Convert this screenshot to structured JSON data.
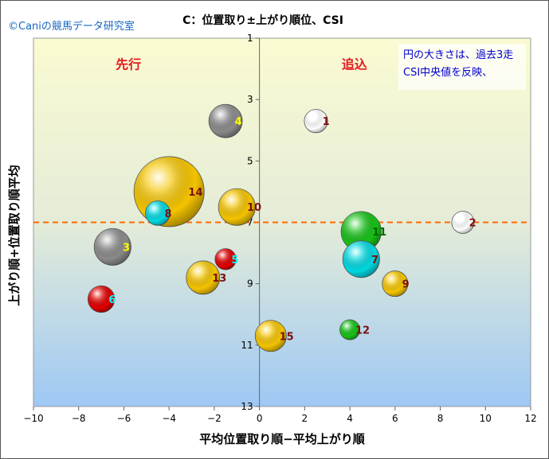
{
  "watermark": "©Caniの競馬データ研究室",
  "colors": {
    "watermark": "#1565c0",
    "quadrant_label": "#e41c1c",
    "note_text": "#0000cc",
    "reference_line": "#ff6a00",
    "label_dark": "#7a1010",
    "label_yellow": "#ffff00",
    "label_cyan": "#00ffff",
    "label_green": "#006400"
  },
  "chart_data": {
    "type": "scatter",
    "title": "C：位置取り±上がり順位、CSI",
    "xlabel": "平均位置取り順−平均上がり順",
    "ylabel": "上がり順+位置取り順平均",
    "xlim": [
      -10,
      12
    ],
    "ylim": [
      13,
      1
    ],
    "y_axis_inverted": true,
    "x_ticks": [
      -10,
      -8,
      -6,
      -4,
      -2,
      0,
      2,
      4,
      6,
      8,
      10,
      12
    ],
    "y_ticks": [
      1,
      3,
      5,
      7,
      9,
      11,
      13
    ],
    "x_tick_labels": [
      "−10",
      "−8",
      "−6",
      "−4",
      "−2",
      "0",
      "2",
      "4",
      "6",
      "8",
      "10",
      "12"
    ],
    "y_tick_labels": [
      "1",
      "3",
      "5",
      "7",
      "9",
      "11",
      "13"
    ],
    "grid": false,
    "vertical_reference_x": 0,
    "horizontal_reference_y": 7,
    "quadrant_labels": {
      "left": "先行",
      "right": "追込"
    },
    "note": [
      "円の大きさは、過去3走",
      "CSI中央値を反映、"
    ],
    "points": [
      {
        "label": "1",
        "x": 2.5,
        "y": 3.7,
        "size": 1.1,
        "color": "#ffffff",
        "label_color": "#7a1010"
      },
      {
        "label": "2",
        "x": 9.0,
        "y": 7.0,
        "size": 1.0,
        "color": "#ffffff",
        "label_color": "#7a1010"
      },
      {
        "label": "3",
        "x": -6.5,
        "y": 7.8,
        "size": 2.3,
        "color": "#8a8a8a",
        "label_color": "#ffff00"
      },
      {
        "label": "4",
        "x": -1.5,
        "y": 3.7,
        "size": 2.0,
        "color": "#8a8a8a",
        "label_color": "#ffff00"
      },
      {
        "label": "5",
        "x": -1.5,
        "y": 8.2,
        "size": 0.9,
        "color": "#e00000",
        "label_color": "#00ffff"
      },
      {
        "label": "6",
        "x": -7.0,
        "y": 9.5,
        "size": 1.4,
        "color": "#e00000",
        "label_color": "#00ffff"
      },
      {
        "label": "7",
        "x": 4.5,
        "y": 8.2,
        "size": 2.3,
        "color": "#00d8e0",
        "label_color": "#7a1010"
      },
      {
        "label": "8",
        "x": -4.5,
        "y": 6.7,
        "size": 1.2,
        "color": "#00d8e0",
        "label_color": "#7a1010"
      },
      {
        "label": "9",
        "x": 6.0,
        "y": 9.0,
        "size": 1.3,
        "color": "#f4c400",
        "label_color": "#7a1010"
      },
      {
        "label": "10",
        "x": -1.0,
        "y": 6.5,
        "size": 2.3,
        "color": "#f4c400",
        "label_color": "#7a1010"
      },
      {
        "label": "11",
        "x": 4.5,
        "y": 7.3,
        "size": 2.6,
        "color": "#17c017",
        "label_color": "#006400"
      },
      {
        "label": "12",
        "x": 4.0,
        "y": 10.5,
        "size": 0.8,
        "color": "#17c017",
        "label_color": "#7a1010"
      },
      {
        "label": "13",
        "x": -2.5,
        "y": 8.8,
        "size": 2.0,
        "color": "#f4c400",
        "label_color": "#7a1010"
      },
      {
        "label": "14",
        "x": -4.0,
        "y": 6.0,
        "size": 5.3,
        "color": "#f4c400",
        "label_color": "#7a1010"
      },
      {
        "label": "15",
        "x": 0.5,
        "y": 10.7,
        "size": 1.8,
        "color": "#f4c400",
        "label_color": "#7a1010"
      }
    ]
  }
}
